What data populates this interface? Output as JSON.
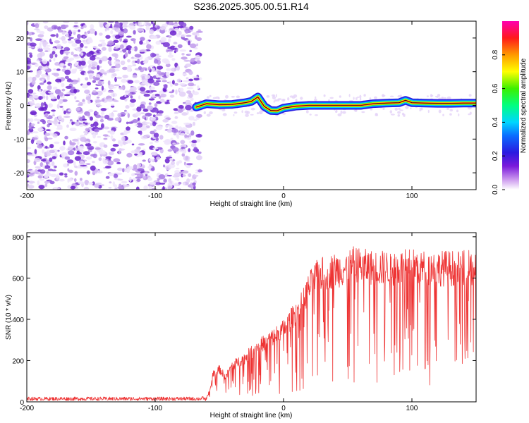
{
  "figure": {
    "title": "S236.2025.305.00.51.R14"
  },
  "chart_data": [
    {
      "type": "heatmap",
      "title": "S236.2025.305.00.51.R14",
      "xlabel": "Height of straight line (km)",
      "ylabel": "Frequency (Hz)",
      "xlim": [
        -200,
        150
      ],
      "ylim": [
        -25,
        25
      ],
      "xticks": [
        -200,
        -100,
        0,
        100
      ],
      "yticks": [
        -20,
        -10,
        0,
        10,
        20
      ],
      "noise_region_x": [
        -200,
        -65
      ],
      "signal_track": {
        "x": [
          -68,
          -60,
          -50,
          -40,
          -30,
          -25,
          -20,
          -15,
          -10,
          -5,
          0,
          5,
          10,
          20,
          30,
          50,
          60,
          70,
          80,
          90,
          95,
          100,
          110,
          120,
          130,
          140,
          150
        ],
        "freq": [
          -0.5,
          0.5,
          0.2,
          0.3,
          0.8,
          1.2,
          2.5,
          -0.3,
          -1.5,
          -1.6,
          -0.8,
          -0.5,
          -0.2,
          0,
          0,
          0,
          0,
          0.5,
          0.7,
          0.8,
          1.5,
          0.8,
          0.7,
          0.6,
          0.6,
          0.7,
          0.7
        ]
      },
      "colorbar": {
        "label": "Normalized spectral amplitude",
        "range": [
          0,
          1
        ],
        "ticks": [
          "0.0",
          "0.2",
          "0.4",
          "0.6",
          "0.8"
        ]
      }
    },
    {
      "type": "line",
      "xlabel": "Height of straight line (km)",
      "ylabel": "SNR (10 * v/v)",
      "xlim": [
        -200,
        150
      ],
      "ylim": [
        0,
        820
      ],
      "xticks": [
        -200,
        -100,
        0,
        100
      ],
      "yticks": [
        0,
        200,
        400,
        600,
        800
      ],
      "color": "#ee3333",
      "series": [
        {
          "name": "SNR",
          "x": [
            -200,
            -150,
            -100,
            -65,
            -60,
            -57,
            -55,
            -50,
            -45,
            -40,
            -30,
            -20,
            -10,
            0,
            10,
            15,
            20,
            25,
            30,
            40,
            50,
            55,
            60,
            70,
            80,
            90,
            100,
            110,
            120,
            130,
            140,
            150
          ],
          "values": [
            15,
            15,
            15,
            15,
            20,
            70,
            150,
            170,
            130,
            190,
            230,
            290,
            330,
            380,
            470,
            520,
            600,
            650,
            670,
            690,
            700,
            720,
            710,
            700,
            700,
            700,
            710,
            700,
            700,
            700,
            700,
            700
          ]
        }
      ]
    }
  ]
}
